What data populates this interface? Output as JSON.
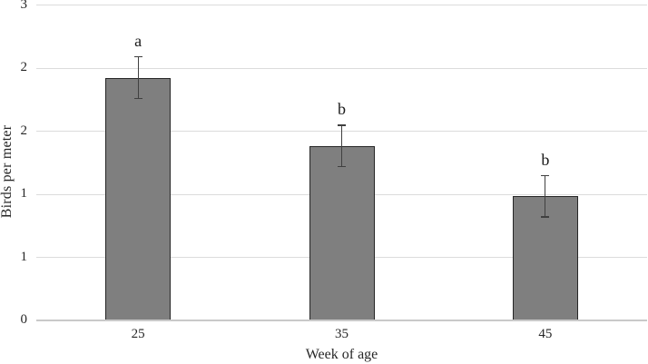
{
  "chart_data": {
    "type": "bar",
    "title": "",
    "xlabel": "Week of age",
    "ylabel": "Birds per meter",
    "categories": [
      "25",
      "35",
      "45"
    ],
    "values": [
      1.92,
      1.38,
      0.98
    ],
    "error_bars": [
      0.17,
      0.17,
      0.17
    ],
    "significance_letters": [
      "a",
      "b",
      "b"
    ],
    "ylim": [
      0,
      2.5
    ],
    "y_tick_values": [
      0,
      0.5,
      1,
      1.5,
      2,
      2.5
    ],
    "y_tick_labels": [
      "0",
      "1",
      "1",
      "2",
      "2",
      "3"
    ],
    "grid": "horizontal gridlines on",
    "legend_position": "none",
    "colors": {
      "bar_fill": "#7f7f7f",
      "bar_border": "#262626",
      "error_bar": "#404040",
      "gridline": "#dcdcdc",
      "axis_line": "#c9c9c9",
      "text": "#262626",
      "background": "#ffffff"
    }
  }
}
